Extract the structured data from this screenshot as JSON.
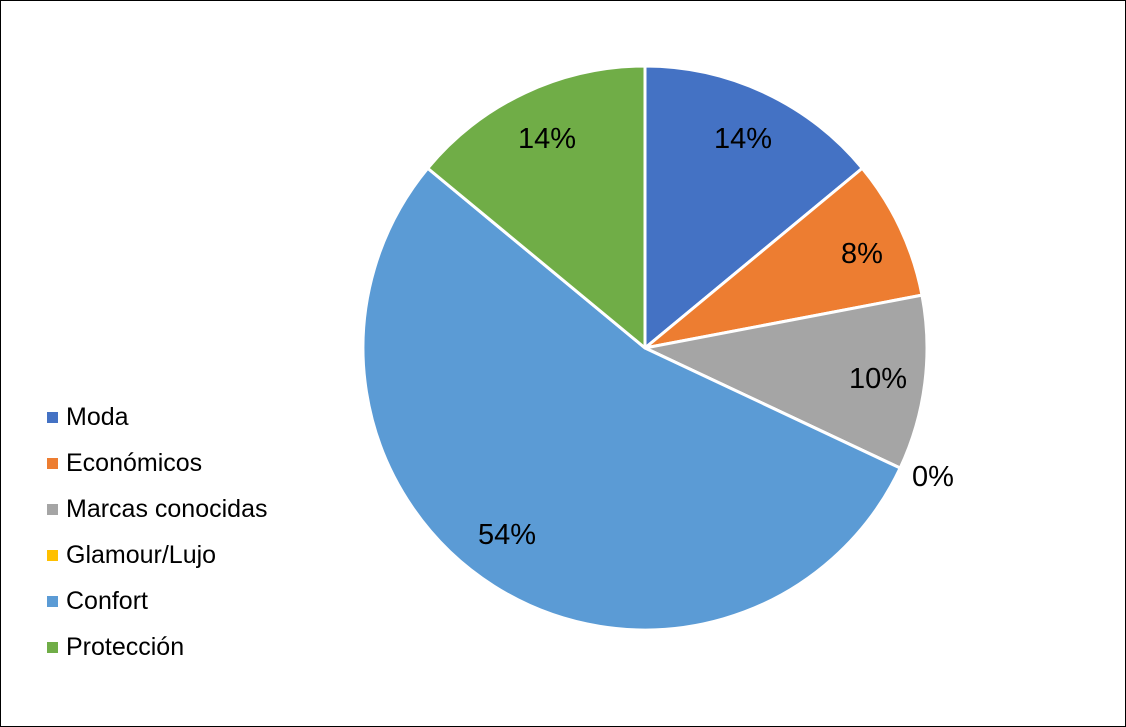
{
  "chart_data": {
    "type": "pie",
    "title": "",
    "slices": [
      {
        "label": "Moda",
        "value": 14,
        "display": "14%",
        "color": "#4472C4"
      },
      {
        "label": "Económicos",
        "value": 8,
        "display": "8%",
        "color": "#ED7D31"
      },
      {
        "label": "Marcas conocidas",
        "value": 10,
        "display": "10%",
        "color": "#A5A5A5"
      },
      {
        "label": "Glamour/Lujo",
        "value": 0,
        "display": "0%",
        "color": "#FFC000"
      },
      {
        "label": "Confort",
        "value": 54,
        "display": "54%",
        "color": "#5B9BD5"
      },
      {
        "label": "Protección",
        "value": 14,
        "display": "14%",
        "color": "#70AD47"
      }
    ],
    "start_angle_deg": 0,
    "direction": "clockwise",
    "legend_position": "left",
    "slice_border_color": "#FFFFFF"
  }
}
